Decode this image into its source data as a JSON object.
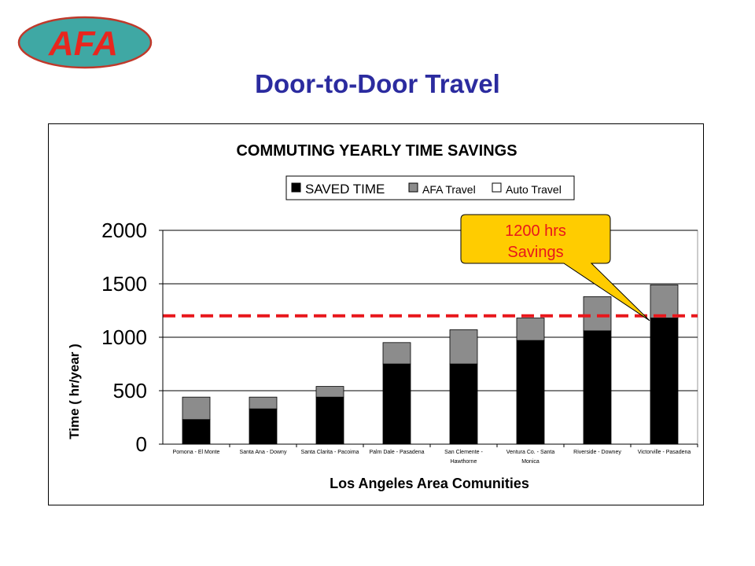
{
  "slide": {
    "logo_text": "AFA",
    "title": "Door-to-Door Travel"
  },
  "colors": {
    "title": "#2b2b9f",
    "logo_fill": "#3fa8a4",
    "logo_border": "#c0392b",
    "logo_text": "#e8261e",
    "saved": "#000000",
    "afa": "#8c8c8c",
    "auto": "#ffffff",
    "reference_line": "#e8171c",
    "callout_fill": "#ffcc00"
  },
  "chart_data": {
    "type": "bar",
    "stacked": true,
    "title": "COMMUTING YEARLY TIME SAVINGS",
    "xlabel": "Los Angeles Area Comunities",
    "ylabel": "Time ( hr/year )",
    "ylim": [
      0,
      2000
    ],
    "yticks": [
      0,
      500,
      1000,
      1500,
      2000
    ],
    "grid": true,
    "legend_position": "top-right",
    "categories": [
      [
        "Pomona - El Monte"
      ],
      [
        "Santa Ana - Downy"
      ],
      [
        "Santa Clarita - Pacoima"
      ],
      [
        "Palm Dale - Pasadena"
      ],
      [
        "San Clemente -",
        "Hawthorne"
      ],
      [
        "Ventura Co. - Santa",
        "Monica"
      ],
      [
        "Riverside - Downey"
      ],
      [
        "Victorville - Pasadena"
      ]
    ],
    "series": [
      {
        "name": "SAVED TIME",
        "values": [
          230,
          330,
          440,
          750,
          750,
          970,
          1060,
          1180
        ]
      },
      {
        "name": "AFA Travel",
        "values": [
          210,
          110,
          100,
          200,
          320,
          210,
          320,
          310
        ]
      },
      {
        "name": "Auto Travel",
        "values": [
          0,
          0,
          0,
          0,
          0,
          0,
          0,
          0
        ]
      }
    ],
    "reference_line": {
      "value": 1200
    },
    "annotation": {
      "lines": [
        "1200 hrs",
        "Savings"
      ]
    }
  }
}
